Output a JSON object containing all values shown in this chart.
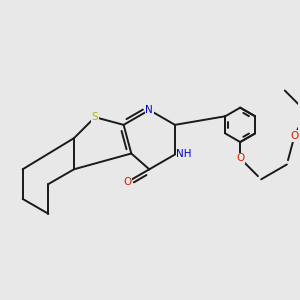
{
  "background_color": "#e8e8e8",
  "bond_color": "#1a1a1a",
  "S_color": "#b8b800",
  "N_color": "#0000cc",
  "O_color": "#cc2200",
  "bond_width": 1.4,
  "figsize": [
    3.0,
    3.0
  ],
  "dpi": 100,
  "xlim": [
    0.0,
    1.0
  ],
  "ylim": [
    0.0,
    1.0
  ]
}
